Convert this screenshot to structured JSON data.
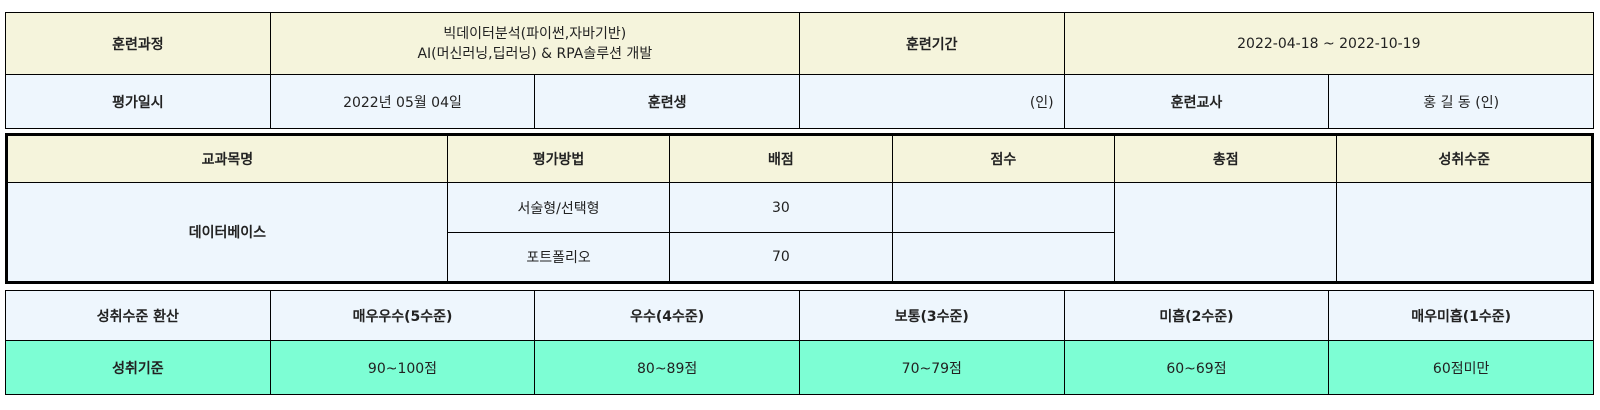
{
  "header": {
    "course_label": "훈련과정",
    "course_line1": "빅데이터분석(파이썬,자바기반)",
    "course_line2": "AI(머신러닝,딥러닝) & RPA솔루션 개발",
    "period_label": "훈련기간",
    "period_value": "2022-04-18 ~ 2022-10-19",
    "eval_date_label": "평가일시",
    "eval_date_value": "2022년 05월 04일",
    "trainee_label": "훈련생",
    "trainee_value": "(인)",
    "teacher_label": "훈련교사",
    "teacher_value": "홍 길 동 (인)"
  },
  "grades": {
    "headers": [
      "교과목명",
      "평가방법",
      "배점",
      "점수",
      "총점",
      "성취수준"
    ],
    "subject": "데이터베이스",
    "rows": [
      {
        "method": "서술형/선택형",
        "points": "30",
        "score": ""
      },
      {
        "method": "포트폴리오",
        "points": "70",
        "score": ""
      }
    ],
    "total": "",
    "level": ""
  },
  "conversion": {
    "label": "성취수준 환산",
    "levels": [
      "매우우수(5수준)",
      "우수(4수준)",
      "보통(3수준)",
      "미흡(2수준)",
      "매우미흡(1수준)"
    ],
    "criteria_label": "성취기준",
    "criteria": [
      "90~100점",
      "80~89점",
      "70~79점",
      "60~69점",
      "60점미만"
    ]
  }
}
